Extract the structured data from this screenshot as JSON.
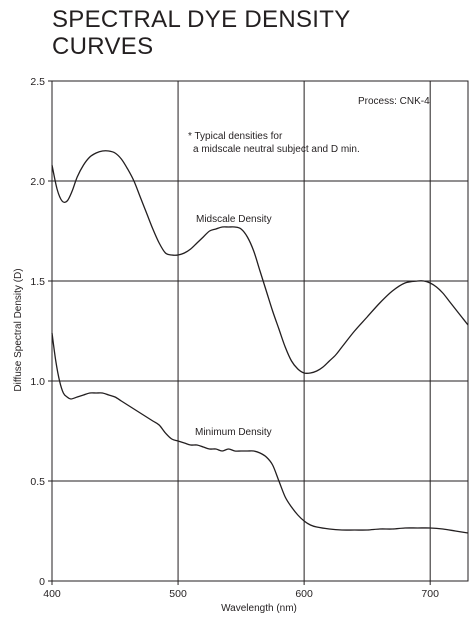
{
  "chart_data": {
    "type": "line",
    "title": "SPECTRAL DYE DENSITY\nCURVES",
    "xlabel": "Wavelength (nm)",
    "ylabel": "Diffuse Spectral Density (D)",
    "xlim": [
      400,
      730
    ],
    "ylim": [
      0,
      2.5
    ],
    "x_ticks": [
      400,
      500,
      600,
      700
    ],
    "y_ticks": [
      0,
      0.5,
      1.0,
      1.5,
      2.0,
      2.5
    ],
    "x_tick_labels": [
      "400",
      "500",
      "600",
      "700"
    ],
    "y_tick_labels": [
      "0",
      "0.5",
      "1.0",
      "1.5",
      "2.0",
      "2.5"
    ],
    "grid": true,
    "annotations": {
      "process": "Process: CNK-4",
      "note_line1": "* Typical densities for",
      "note_line2": "a midscale neutral subject and D min."
    },
    "series": [
      {
        "name": "Midscale Density",
        "x": [
          400,
          404,
          408,
          412,
          416,
          420,
          425,
          430,
          435,
          440,
          445,
          450,
          455,
          460,
          465,
          470,
          475,
          480,
          485,
          490,
          495,
          500,
          505,
          510,
          515,
          520,
          525,
          530,
          535,
          540,
          545,
          550,
          555,
          560,
          565,
          570,
          575,
          580,
          585,
          590,
          595,
          600,
          605,
          610,
          615,
          620,
          625,
          630,
          640,
          650,
          660,
          670,
          680,
          690,
          695,
          700,
          705,
          710,
          715,
          720,
          725,
          730
        ],
        "values": [
          2.08,
          1.96,
          1.9,
          1.9,
          1.95,
          2.02,
          2.08,
          2.12,
          2.14,
          2.15,
          2.15,
          2.14,
          2.11,
          2.06,
          2.0,
          1.92,
          1.84,
          1.76,
          1.69,
          1.64,
          1.63,
          1.63,
          1.64,
          1.66,
          1.69,
          1.72,
          1.75,
          1.76,
          1.77,
          1.77,
          1.77,
          1.76,
          1.72,
          1.65,
          1.55,
          1.45,
          1.35,
          1.26,
          1.17,
          1.1,
          1.06,
          1.04,
          1.04,
          1.05,
          1.07,
          1.1,
          1.13,
          1.17,
          1.25,
          1.32,
          1.39,
          1.45,
          1.49,
          1.5,
          1.5,
          1.49,
          1.47,
          1.44,
          1.4,
          1.36,
          1.32,
          1.28
        ]
      },
      {
        "name": "Minimum Density",
        "x": [
          400,
          403,
          406,
          409,
          412,
          415,
          420,
          425,
          430,
          435,
          440,
          445,
          450,
          455,
          460,
          465,
          470,
          475,
          480,
          485,
          490,
          495,
          500,
          505,
          510,
          515,
          520,
          525,
          530,
          535,
          540,
          545,
          550,
          555,
          560,
          565,
          570,
          575,
          580,
          585,
          590,
          595,
          600,
          605,
          610,
          620,
          630,
          640,
          650,
          660,
          670,
          680,
          690,
          700,
          710,
          720,
          730
        ],
        "values": [
          1.24,
          1.1,
          1.0,
          0.94,
          0.92,
          0.91,
          0.92,
          0.93,
          0.94,
          0.94,
          0.94,
          0.93,
          0.92,
          0.9,
          0.88,
          0.86,
          0.84,
          0.82,
          0.8,
          0.78,
          0.74,
          0.71,
          0.7,
          0.69,
          0.68,
          0.68,
          0.67,
          0.66,
          0.66,
          0.65,
          0.66,
          0.65,
          0.65,
          0.65,
          0.65,
          0.64,
          0.62,
          0.58,
          0.5,
          0.42,
          0.37,
          0.33,
          0.3,
          0.28,
          0.27,
          0.26,
          0.255,
          0.255,
          0.255,
          0.26,
          0.26,
          0.265,
          0.265,
          0.265,
          0.26,
          0.25,
          0.24
        ]
      }
    ],
    "series_labels": {
      "midscale": "Midscale Density",
      "minimum": "Minimum Density"
    }
  }
}
